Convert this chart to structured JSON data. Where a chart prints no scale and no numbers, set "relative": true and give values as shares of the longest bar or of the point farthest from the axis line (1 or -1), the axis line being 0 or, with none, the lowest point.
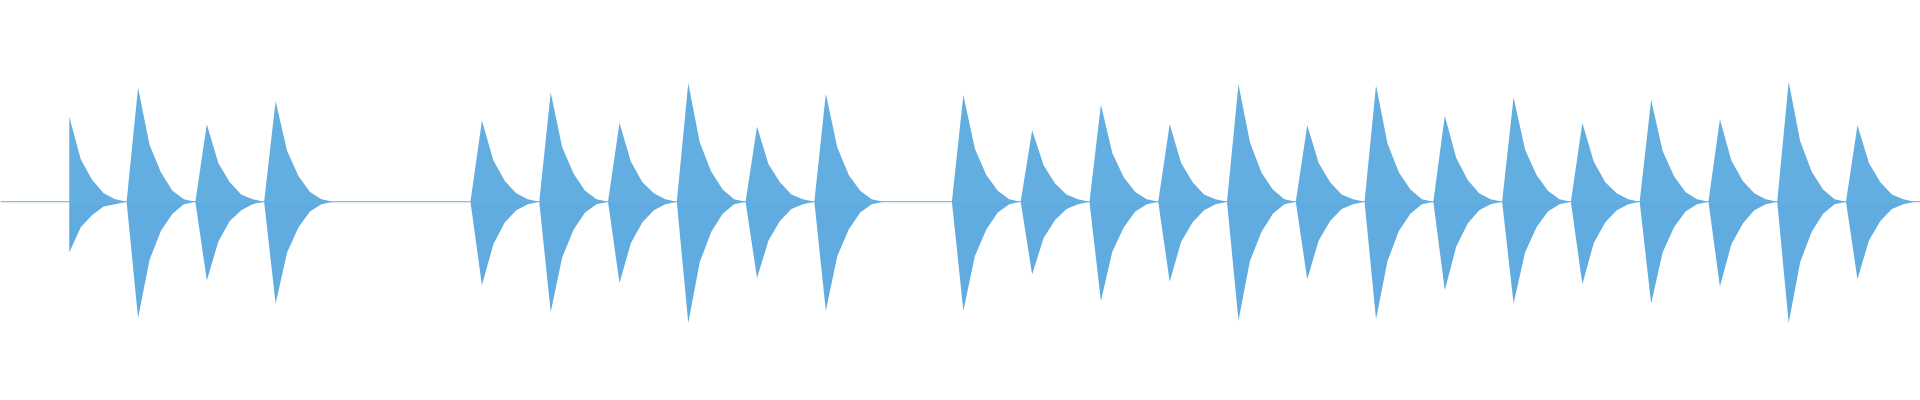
{
  "chart_data": {
    "type": "area",
    "relative": true,
    "grid": false,
    "ref_lines": [
      {
        "axis": "y",
        "value": 0,
        "color": "#62aee0"
      }
    ],
    "categories": [
      null,
      null,
      null,
      null,
      null,
      null,
      null,
      null,
      null,
      null,
      null,
      null,
      null,
      null,
      null,
      null,
      null,
      null,
      null,
      null,
      null,
      null,
      null,
      null,
      null,
      null,
      null,
      null,
      null,
      null,
      null,
      null,
      null,
      null,
      null,
      null,
      null,
      null,
      null,
      null,
      null,
      null,
      null,
      null,
      null,
      null,
      null,
      null,
      null,
      null,
      null,
      null,
      null,
      null,
      null,
      null,
      null,
      null,
      null,
      null,
      null,
      null,
      null,
      null,
      null,
      null,
      null,
      null,
      null,
      null,
      null,
      null,
      null,
      null,
      null,
      null,
      null,
      null,
      null,
      null,
      null,
      null,
      null,
      null,
      null,
      null,
      null,
      null,
      null,
      null,
      null,
      null,
      null,
      null,
      null,
      null,
      null,
      null,
      null,
      null,
      null,
      null,
      null,
      null,
      null,
      null,
      null,
      null,
      null,
      null,
      null,
      null,
      null,
      null,
      null,
      null,
      null,
      null,
      null,
      null,
      null,
      null,
      null,
      null,
      null,
      null,
      null,
      null,
      null,
      null,
      null,
      null,
      null,
      null,
      null,
      null,
      null,
      null,
      null,
      null,
      null,
      null,
      null,
      null,
      null,
      null,
      null,
      null,
      null,
      null,
      null,
      null,
      null,
      null,
      null,
      null,
      null,
      null,
      null,
      null,
      null,
      null
    ],
    "series": [
      {
        "color": "#62aee0",
        "values": [
          0.7,
          0.35,
          0.18,
          0.07,
          0.02,
          0,
          0.94,
          0.47,
          0.24,
          0.09,
          0.02,
          0,
          0.64,
          0.32,
          0.16,
          0.06,
          0.02,
          0,
          0.83,
          0.42,
          0.21,
          0.08,
          0.02,
          0,
          0,
          0,
          0,
          0,
          0,
          0,
          0,
          0,
          0,
          0,
          0,
          0,
          0.67,
          0.34,
          0.17,
          0.07,
          0.02,
          0,
          0.9,
          0.45,
          0.23,
          0.09,
          0.02,
          0,
          0.65,
          0.33,
          0.16,
          0.07,
          0.02,
          0,
          0.98,
          0.49,
          0.25,
          0.1,
          0.02,
          0,
          0.62,
          0.31,
          0.16,
          0.06,
          0.02,
          0,
          0.89,
          0.45,
          0.22,
          0.09,
          0.02,
          0,
          0,
          0,
          0,
          0,
          0,
          0,
          0.88,
          0.44,
          0.22,
          0.09,
          0.02,
          0,
          0.59,
          0.3,
          0.15,
          0.06,
          0.02,
          0,
          0.8,
          0.4,
          0.2,
          0.08,
          0.02,
          0,
          0.64,
          0.32,
          0.16,
          0.06,
          0.02,
          0,
          0.97,
          0.49,
          0.24,
          0.1,
          0.02,
          0,
          0.63,
          0.32,
          0.16,
          0.06,
          0.02,
          0,
          0.96,
          0.48,
          0.24,
          0.1,
          0.02,
          0,
          0.71,
          0.36,
          0.18,
          0.07,
          0.02,
          0,
          0.86,
          0.43,
          0.22,
          0.09,
          0.02,
          0,
          0.65,
          0.33,
          0.16,
          0.07,
          0.02,
          0,
          0.84,
          0.42,
          0.21,
          0.08,
          0.02,
          0,
          0.68,
          0.34,
          0.17,
          0.07,
          0.02,
          0,
          0.99,
          0.5,
          0.25,
          0.1,
          0.02,
          0,
          0.63,
          0.32,
          0.16,
          0.06,
          0.02,
          0
        ]
      },
      {
        "color": "#60ace0",
        "values": [
          -0.42,
          -0.21,
          -0.11,
          -0.04,
          -0.02,
          0,
          -0.96,
          -0.48,
          -0.24,
          -0.1,
          -0.02,
          0,
          -0.65,
          -0.33,
          -0.16,
          -0.07,
          -0.02,
          0,
          -0.84,
          -0.42,
          -0.21,
          -0.08,
          -0.02,
          0,
          0,
          0,
          0,
          0,
          0,
          0,
          0,
          0,
          0,
          0,
          0,
          0,
          -0.69,
          -0.35,
          -0.17,
          -0.07,
          -0.02,
          0,
          -0.91,
          -0.46,
          -0.23,
          -0.09,
          -0.02,
          0,
          -0.67,
          -0.34,
          -0.17,
          -0.07,
          -0.02,
          0,
          -1,
          -0.5,
          -0.25,
          -0.1,
          -0.02,
          0,
          -0.63,
          -0.32,
          -0.16,
          -0.06,
          -0.02,
          0,
          -0.9,
          -0.45,
          -0.23,
          -0.09,
          -0.02,
          0,
          0,
          0,
          0,
          0,
          0,
          0,
          -0.9,
          -0.45,
          -0.23,
          -0.09,
          -0.02,
          0,
          -0.6,
          -0.3,
          -0.15,
          -0.06,
          -0.02,
          0,
          -0.82,
          -0.41,
          -0.21,
          -0.08,
          -0.02,
          0,
          -0.66,
          -0.33,
          -0.17,
          -0.07,
          -0.02,
          0,
          -0.98,
          -0.49,
          -0.25,
          -0.1,
          -0.02,
          0,
          -0.64,
          -0.32,
          -0.16,
          -0.06,
          -0.02,
          0,
          -0.97,
          -0.49,
          -0.24,
          -0.1,
          -0.02,
          0,
          -0.73,
          -0.37,
          -0.18,
          -0.07,
          -0.02,
          0,
          -0.84,
          -0.42,
          -0.21,
          -0.08,
          -0.02,
          0,
          -0.68,
          -0.34,
          -0.17,
          -0.07,
          -0.02,
          0,
          -0.84,
          -0.42,
          -0.21,
          -0.08,
          -0.02,
          0,
          -0.7,
          -0.35,
          -0.18,
          -0.07,
          -0.02,
          0,
          -1,
          -0.5,
          -0.25,
          -0.1,
          -0.02,
          0,
          -0.64,
          -0.32,
          -0.16,
          -0.06,
          -0.02,
          0
        ]
      }
    ]
  }
}
